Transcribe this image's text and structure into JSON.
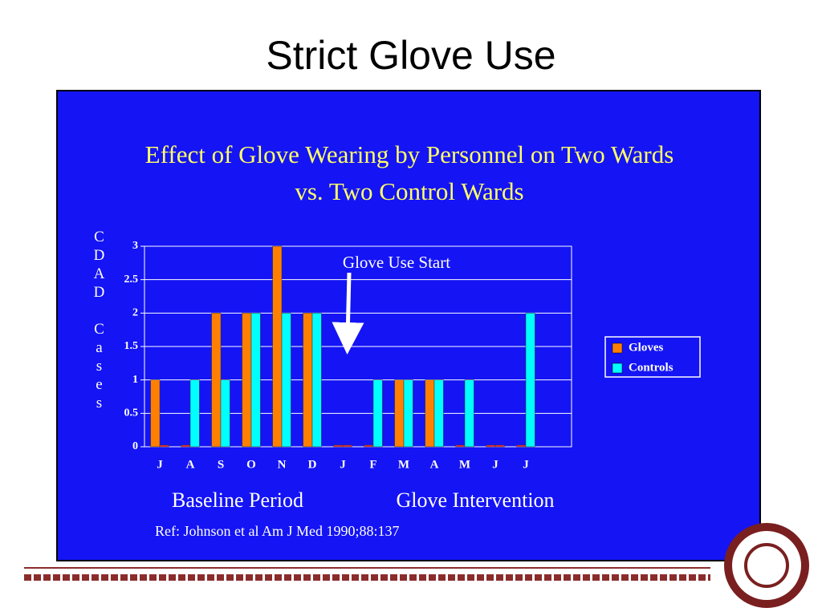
{
  "slide_title": "Strict Glove Use",
  "chart_data": {
    "type": "bar",
    "title": "Effect of Glove Wearing by Personnel on Two Wards vs. Two Control Wards",
    "y_label": "CDAD Cases",
    "categories": [
      "J",
      "A",
      "S",
      "O",
      "N",
      "D",
      "J",
      "F",
      "M",
      "A",
      "M",
      "J",
      "J"
    ],
    "series": [
      {
        "name": "Gloves",
        "color": "#ff8000",
        "values": [
          1,
          0,
          2,
          2,
          3,
          2,
          0,
          0,
          1,
          1,
          0,
          0,
          0
        ]
      },
      {
        "name": "Controls",
        "color": "#00ffff",
        "values": [
          0,
          1,
          1,
          2,
          2,
          2,
          0,
          1,
          1,
          1,
          1,
          0,
          2
        ]
      }
    ],
    "ylim": [
      0,
      3
    ],
    "yticks": [
      0,
      0.5,
      1,
      1.5,
      2,
      2.5,
      3
    ],
    "grid": true,
    "legend": "right",
    "annotations": [
      "Glove Use Start",
      "Baseline Period",
      "Glove Intervention"
    ],
    "reference": "Ref: Johnson et al Am J Med 1990;88:137"
  }
}
